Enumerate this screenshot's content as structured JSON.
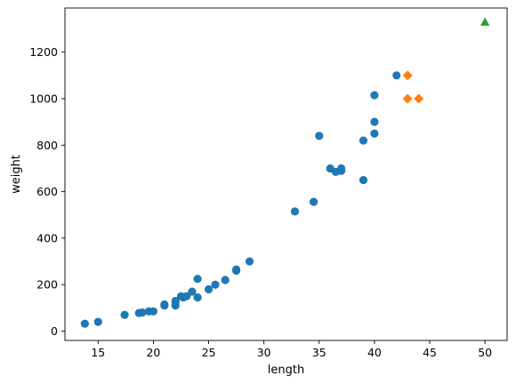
{
  "chart_data": {
    "type": "scatter",
    "xlabel": "length",
    "ylabel": "weight",
    "xlim": [
      12,
      52
    ],
    "ylim": [
      -40,
      1390
    ],
    "xticks": [
      15,
      20,
      25,
      30,
      35,
      40,
      45,
      50
    ],
    "yticks": [
      0,
      200,
      400,
      600,
      800,
      1000,
      1200
    ],
    "grid": false,
    "series": [
      {
        "marker": "circle",
        "color": "#1f77b4",
        "points": [
          [
            13.8,
            32
          ],
          [
            15.0,
            40
          ],
          [
            17.4,
            70
          ],
          [
            18.7,
            78
          ],
          [
            19.0,
            80
          ],
          [
            19.6,
            85
          ],
          [
            20.0,
            85
          ],
          [
            21.0,
            110
          ],
          [
            21.0,
            115
          ],
          [
            22.0,
            110
          ],
          [
            22.0,
            130
          ],
          [
            22.0,
            125
          ],
          [
            22.5,
            150
          ],
          [
            22.7,
            145
          ],
          [
            23.0,
            150
          ],
          [
            23.5,
            170
          ],
          [
            24.0,
            145
          ],
          [
            24.0,
            225
          ],
          [
            25.0,
            180
          ],
          [
            25.6,
            200
          ],
          [
            26.5,
            220
          ],
          [
            27.5,
            260
          ],
          [
            27.5,
            265
          ],
          [
            28.7,
            300
          ],
          [
            32.8,
            515
          ],
          [
            34.5,
            556
          ],
          [
            35.0,
            840
          ],
          [
            36.0,
            700
          ],
          [
            36.5,
            685
          ],
          [
            37.0,
            690
          ],
          [
            37.0,
            700
          ],
          [
            39.0,
            650
          ],
          [
            39.0,
            820
          ],
          [
            40.0,
            850
          ],
          [
            40.0,
            900
          ],
          [
            40.0,
            1015
          ],
          [
            42.0,
            1100
          ]
        ]
      },
      {
        "marker": "diamond",
        "color": "#ff7f0e",
        "points": [
          [
            43.0,
            1100
          ],
          [
            43.0,
            1000
          ],
          [
            44.0,
            1000
          ]
        ]
      },
      {
        "marker": "triangle",
        "color": "#2ca02c",
        "points": [
          [
            50.0,
            1330
          ]
        ]
      }
    ]
  }
}
